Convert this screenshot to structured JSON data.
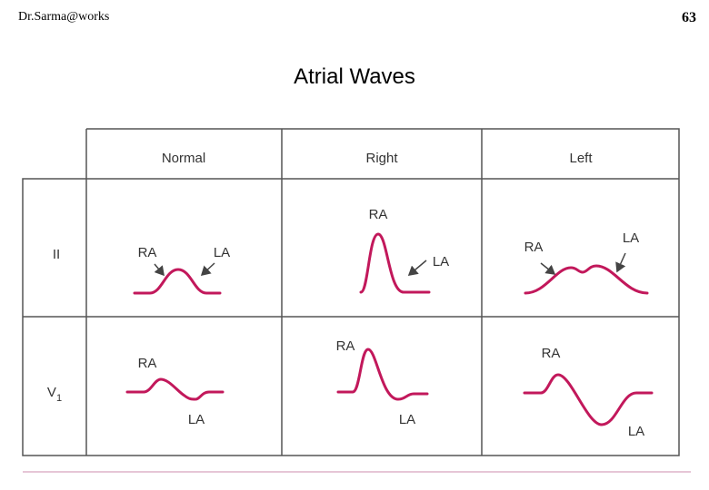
{
  "header": {
    "author": "Dr.Sarma@works",
    "page": "63"
  },
  "title": "Atrial Waves",
  "table": {
    "columns": [
      "Normal",
      "Right",
      "Left"
    ],
    "rows": [
      {
        "lead": {
          "text": "II"
        },
        "cells": [
          [
            "RA",
            "LA"
          ],
          [
            "RA",
            "LA"
          ],
          [
            "RA",
            "LA"
          ]
        ]
      },
      {
        "lead": {
          "text": "V",
          "subscript": "1"
        },
        "cells": [
          [
            "RA",
            "LA"
          ],
          [
            "RA",
            "LA"
          ],
          [
            "RA",
            "LA"
          ]
        ]
      }
    ]
  }
}
